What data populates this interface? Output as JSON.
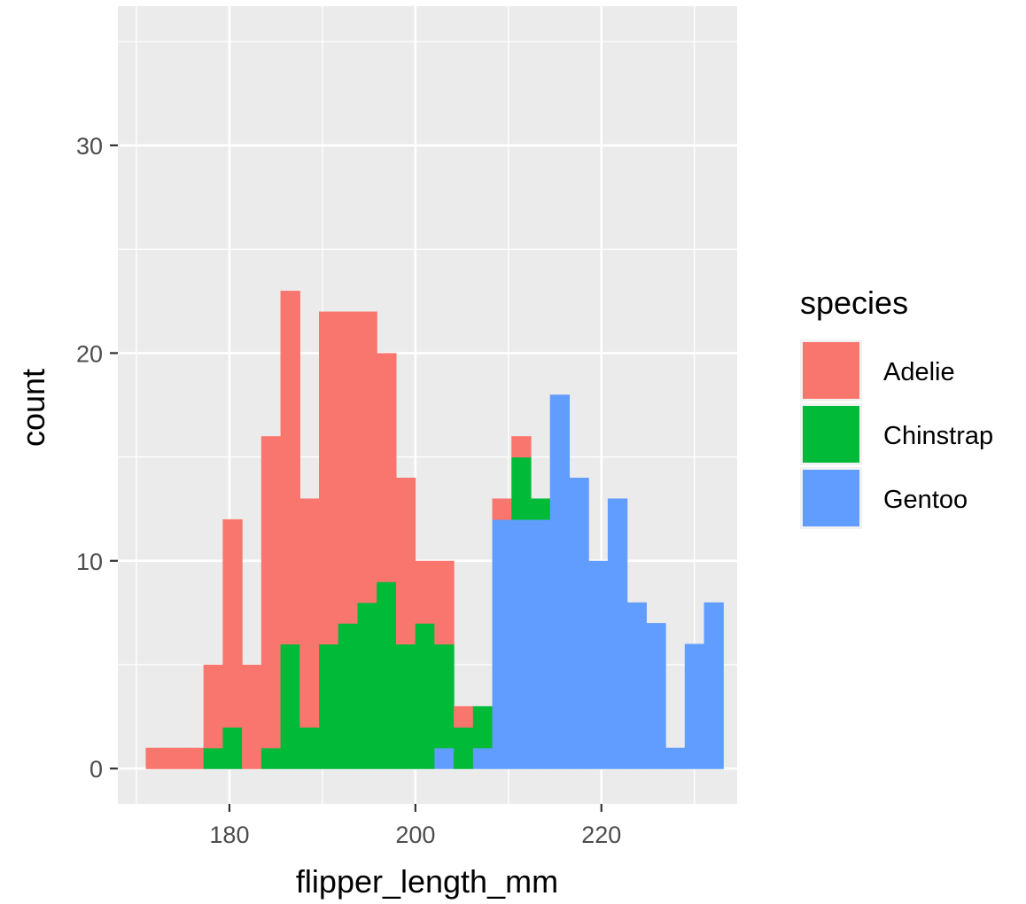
{
  "chart_data": {
    "type": "bar",
    "stacked": true,
    "bin_width": 2.07,
    "bin_start": 171.0,
    "xlabel": "flipper_length_mm",
    "ylabel": "count",
    "xlim": [
      168.0,
      234.6
    ],
    "ylim": [
      -1.7,
      36.7
    ],
    "x_ticks": [
      180,
      200,
      220
    ],
    "y_ticks": [
      0,
      10,
      20,
      30
    ],
    "legend_title": "species",
    "legend_position": "right",
    "grid": true,
    "series": [
      {
        "name": "Gentoo",
        "color": "#619CFF",
        "values": [
          0,
          0,
          0,
          0,
          0,
          0,
          0,
          0,
          0,
          0,
          0,
          0,
          0,
          0,
          0,
          1,
          0,
          1,
          12,
          12,
          12,
          18,
          14,
          10,
          13,
          8,
          7,
          1,
          6,
          8
        ]
      },
      {
        "name": "Chinstrap",
        "color": "#00BA38",
        "values": [
          0,
          0,
          0,
          1,
          2,
          0,
          1,
          6,
          2,
          6,
          7,
          8,
          9,
          6,
          7,
          5,
          2,
          2,
          0,
          3,
          1,
          0,
          0,
          0,
          0,
          0,
          0,
          0,
          0,
          0
        ]
      },
      {
        "name": "Adelie",
        "color": "#F8766D",
        "values": [
          1,
          1,
          1,
          4,
          10,
          5,
          15,
          17,
          11,
          16,
          15,
          14,
          11,
          8,
          3,
          4,
          1,
          0,
          1,
          1,
          0,
          0,
          0,
          0,
          0,
          0,
          0,
          0,
          0,
          0
        ]
      }
    ]
  }
}
